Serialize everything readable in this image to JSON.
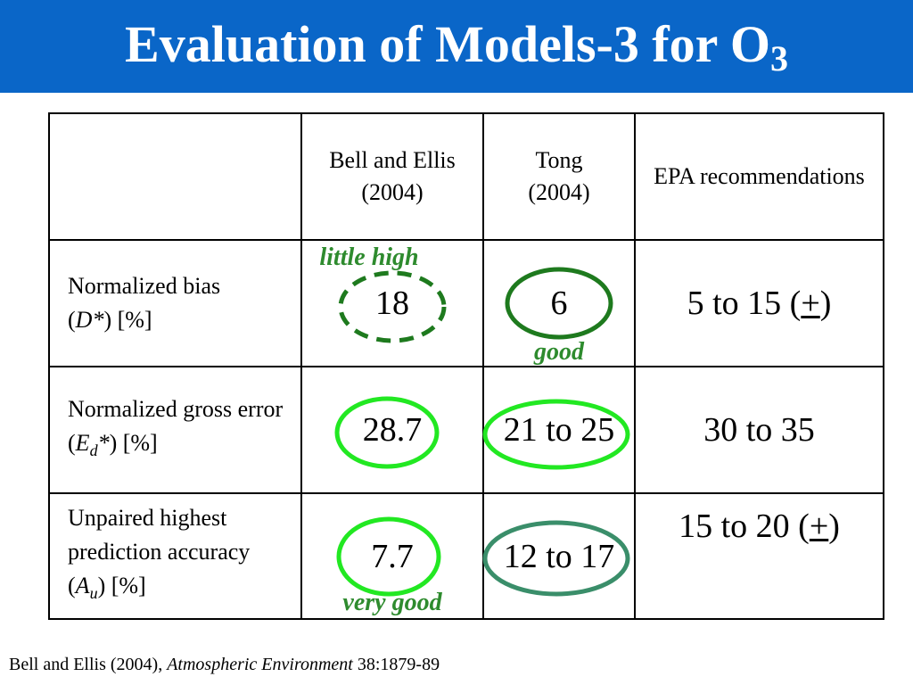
{
  "title": {
    "text": "Evaluation of Models-3 for O",
    "subscript": "3"
  },
  "table": {
    "headers": [
      "",
      "Bell and Ellis (2004)",
      "Tong (2004)",
      "EPA recommendations"
    ],
    "rows": [
      {
        "label_main": "Normalized bias",
        "label_pre": "(",
        "symbol": "D*",
        "symbol_sub": "",
        "label_post": ") [%]",
        "bell": "18",
        "tong": "6",
        "epa_value": "5 to 15 (",
        "epa_pm": "+",
        "epa_close": ")"
      },
      {
        "label_main": "Normalized gross error",
        "label_pre": "(",
        "symbol": "E",
        "symbol_sub": "d",
        "symbol_post": "*",
        "label_post": ") [%]",
        "bell": "28.7",
        "tong": "21 to 25",
        "epa": "30 to 35"
      },
      {
        "label_main": "Unpaired highest prediction accuracy",
        "label_pre": "(",
        "symbol": "A",
        "symbol_sub": "u",
        "label_post": ") [%]",
        "bell": "7.7",
        "tong": "12 to 17",
        "epa_value": "15 to 20 (",
        "epa_pm": "+",
        "epa_close": ")"
      }
    ]
  },
  "annotations": {
    "little_high": "little high",
    "good": "good",
    "very_good": "very good"
  },
  "colors": {
    "title_bar": "#0a66c8",
    "annotation_green": "#2e8b2e",
    "dashed_circle": "#1e7a1e",
    "dark_green_circle": "#1e7a1e",
    "bright_green_circle": "#22e822",
    "teal_green_circle": "#3a8e6a"
  },
  "reference": {
    "authors": "Bell and Ellis (2004), ",
    "journal": "Atmospheric Environment",
    "citation": " 38:1879-89"
  }
}
